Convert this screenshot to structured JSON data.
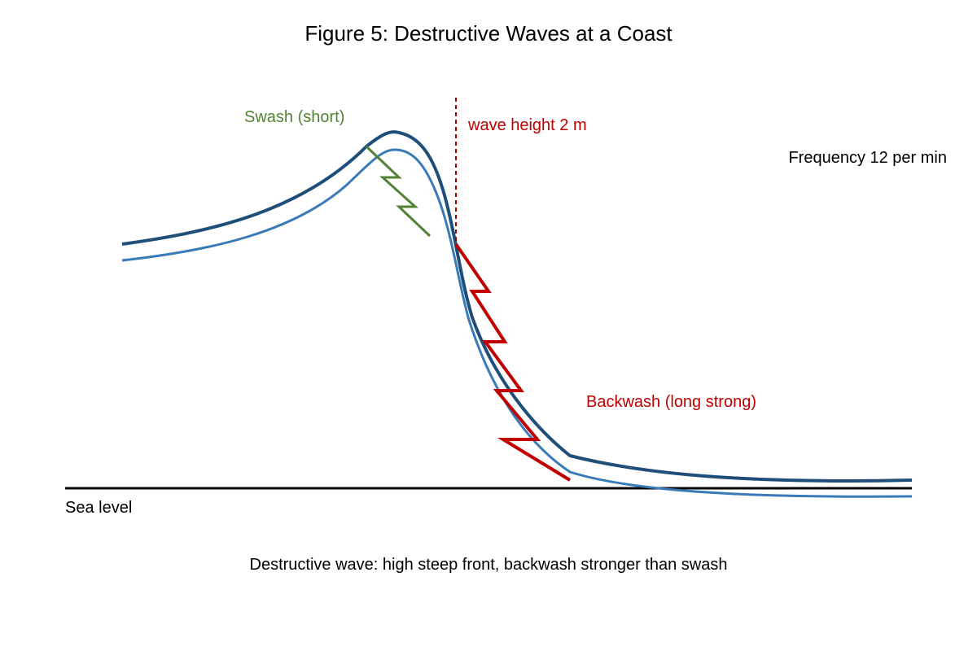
{
  "title": "Figure 5: Destructive Waves at a Coast",
  "labels": {
    "swash": "Swash (short)",
    "wave_height": "wave height 2 m",
    "frequency": "Frequency 12 per min",
    "backwash": "Backwash (long strong)",
    "sea_level": "Sea level"
  },
  "caption": "Destructive wave: high steep front, backwash stronger than swash",
  "colors": {
    "wave_outer": "#1f4e79",
    "wave_inner": "#3a7ab8",
    "swash": "#548235",
    "backwash": "#c00000",
    "wave_height_marker": "#a00000",
    "sea_level": "#000000",
    "text": "#000000"
  }
}
